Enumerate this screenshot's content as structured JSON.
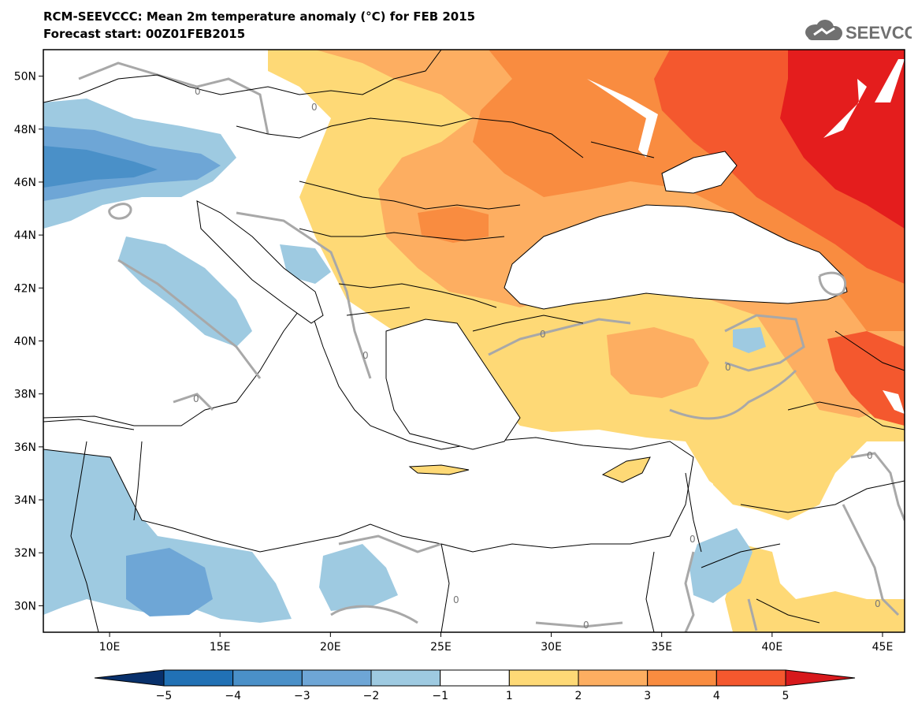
{
  "header": {
    "title": "RCM-SEEVCCC: Mean 2m temperature anomaly (°C) for FEB 2015",
    "subtitle": "Forecast start: 00Z01FEB2015",
    "logo_text": "SEEVCCC"
  },
  "map": {
    "lon_range": [
      7,
      46
    ],
    "lat_range": [
      29,
      51
    ],
    "lat_ticks": [
      {
        "value": 50,
        "label": "50N"
      },
      {
        "value": 48,
        "label": "48N"
      },
      {
        "value": 46,
        "label": "46N"
      },
      {
        "value": 44,
        "label": "44N"
      },
      {
        "value": 42,
        "label": "42N"
      },
      {
        "value": 40,
        "label": "40N"
      },
      {
        "value": 38,
        "label": "38N"
      },
      {
        "value": 36,
        "label": "36N"
      },
      {
        "value": 34,
        "label": "34N"
      },
      {
        "value": 32,
        "label": "32N"
      },
      {
        "value": 30,
        "label": "30N"
      }
    ],
    "lon_ticks": [
      {
        "value": 10,
        "label": "10E"
      },
      {
        "value": 15,
        "label": "15E"
      },
      {
        "value": 20,
        "label": "20E"
      },
      {
        "value": 25,
        "label": "25E"
      },
      {
        "value": 30,
        "label": "30E"
      },
      {
        "value": 35,
        "label": "35E"
      },
      {
        "value": 40,
        "label": "40E"
      },
      {
        "value": 45,
        "label": "45E"
      }
    ],
    "zero_contour_label": "0"
  },
  "colorbar": {
    "labels": [
      "−5",
      "−4",
      "−3",
      "−2",
      "−1",
      "1",
      "2",
      "3",
      "4",
      "5"
    ],
    "colors": [
      "#08306b",
      "#2171b5",
      "#4a90c8",
      "#6ea6d6",
      "#9ecae1",
      "#ffffff",
      "#fed976",
      "#fdae61",
      "#f98c40",
      "#f4582e",
      "#d7191c"
    ]
  },
  "colors": {
    "very_warm": "#e41d1d",
    "warm": "#f4582e",
    "mid_warm": "#f98c40",
    "orange": "#fdae61",
    "light_yellow": "#fed976",
    "light_blue": "#9ecae1",
    "mid_blue": "#6ea6d6",
    "blue": "#4a90c8",
    "contour": "#a8a8a8",
    "sea": "#ffffff"
  }
}
